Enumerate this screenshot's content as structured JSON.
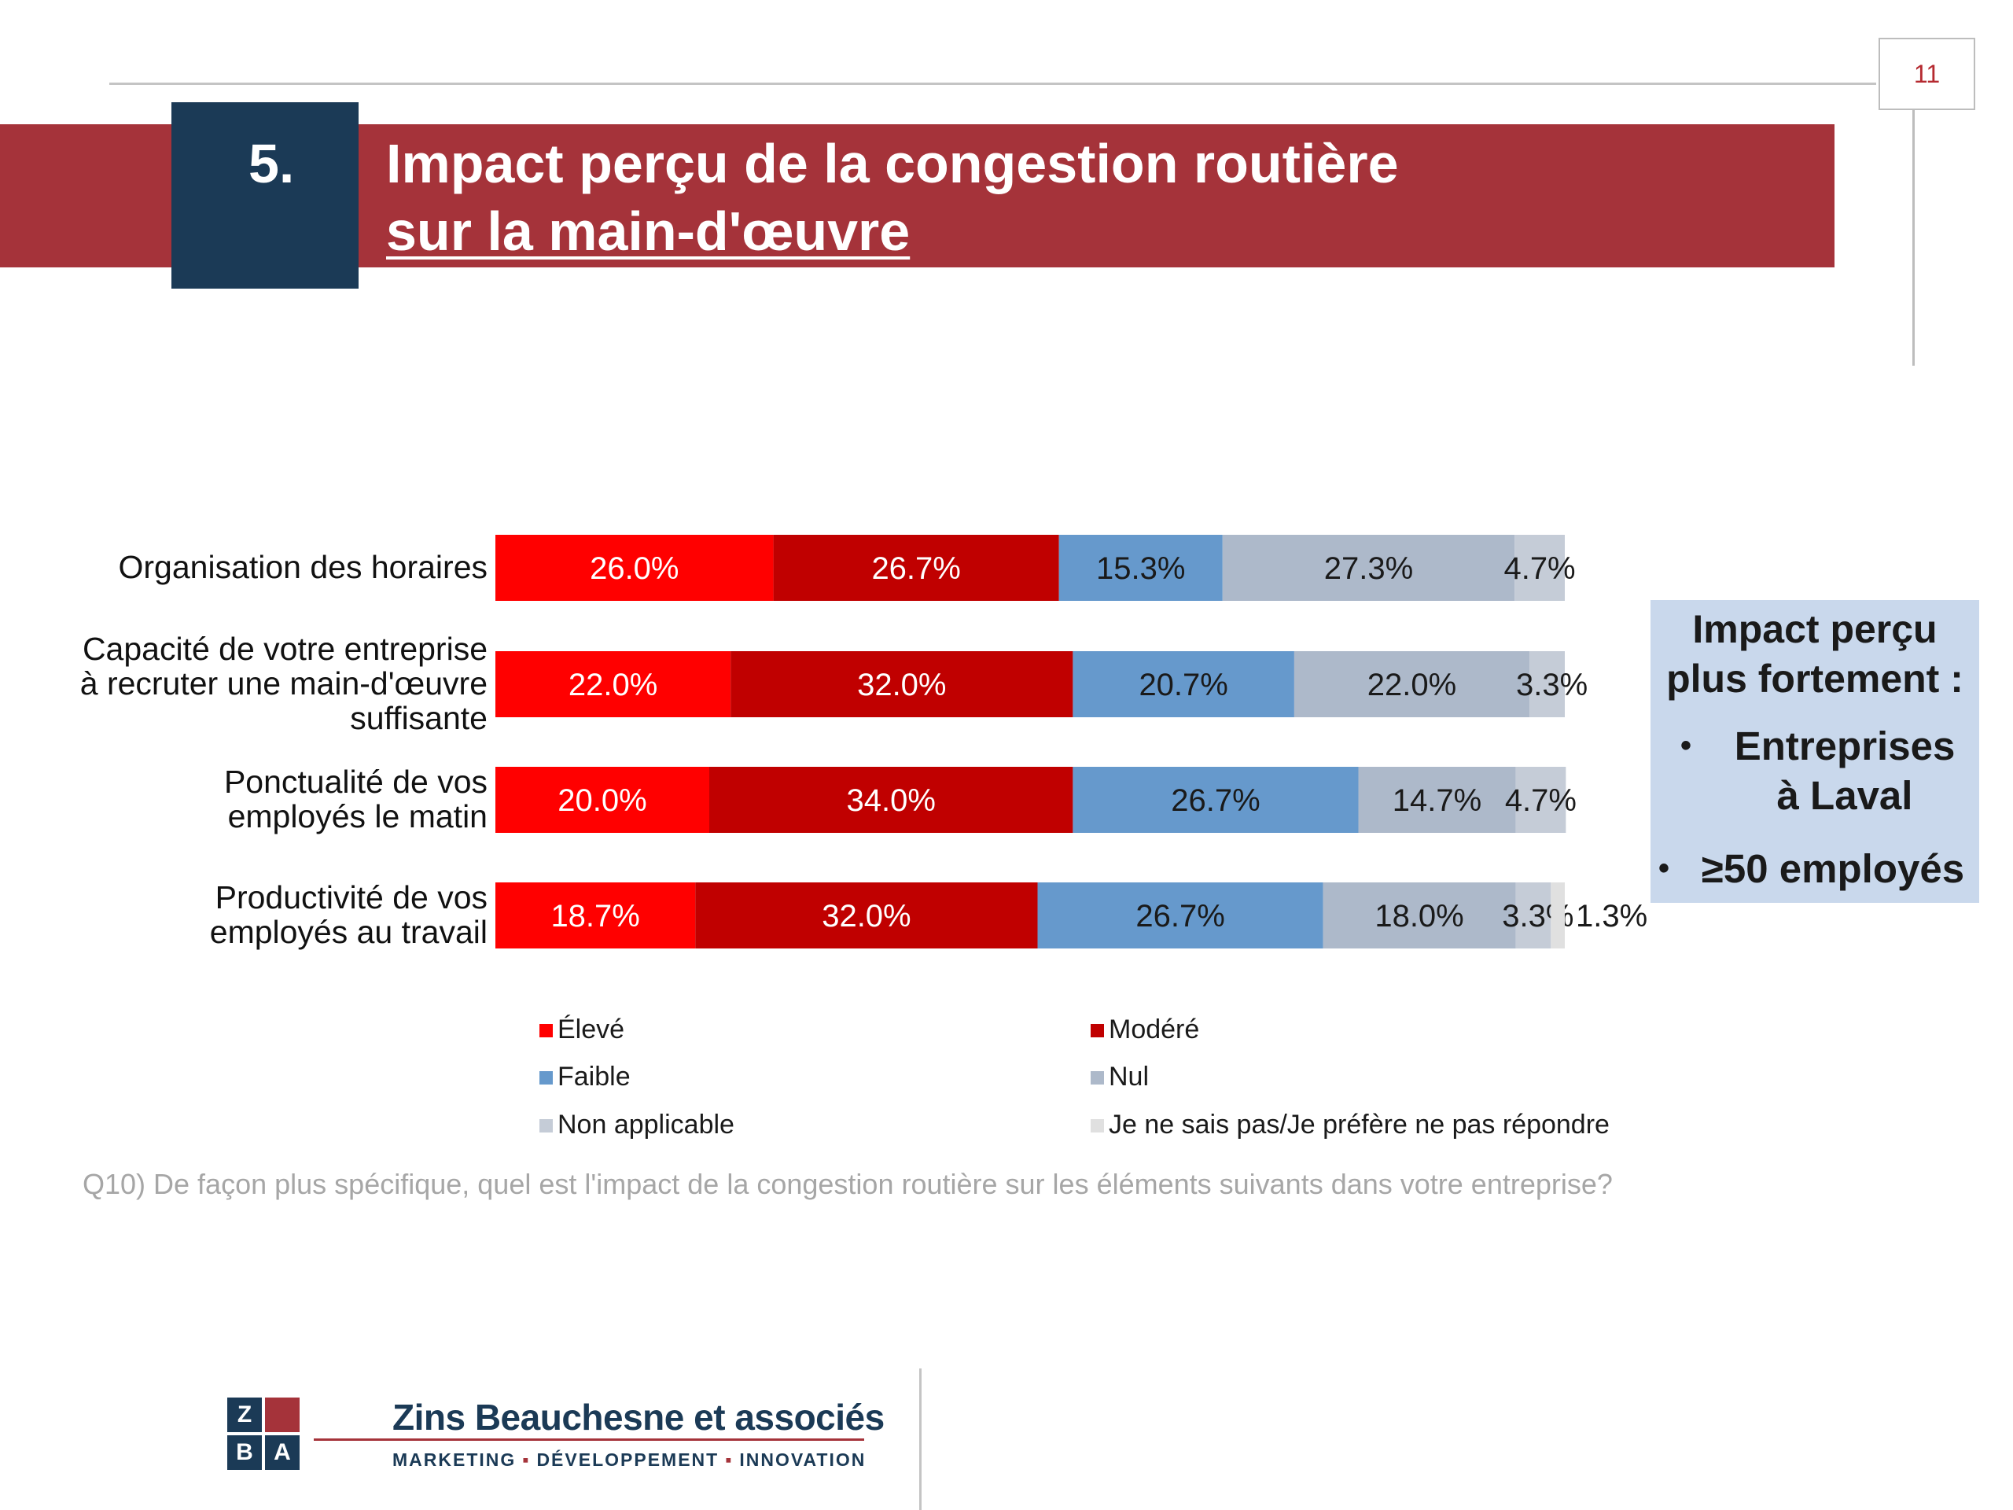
{
  "page_number": "11",
  "section_number": "5.",
  "title_line1": "Impact perçu de la congestion routière",
  "title_line2": "sur la main-d'œuvre",
  "chart_data": {
    "type": "bar",
    "orientation": "horizontal",
    "stacked": true,
    "categories": [
      [
        "Organisation des horaires"
      ],
      [
        "Capacité de votre entreprise",
        "à recruter une main-d'œuvre",
        "suffisante"
      ],
      [
        "Ponctualité de vos",
        "employés le matin"
      ],
      [
        "Productivité de vos",
        "employés au travail"
      ]
    ],
    "series": [
      {
        "name": "Élevé",
        "color": "#ff0000",
        "values": [
          26.0,
          22.0,
          20.0,
          18.7
        ],
        "labels": [
          "26.0%",
          "22.0%",
          "20.0%",
          "18.7%"
        ]
      },
      {
        "name": "Modéré",
        "color": "#c00000",
        "values": [
          26.7,
          32.0,
          34.0,
          32.0
        ],
        "labels": [
          "26.7%",
          "32.0%",
          "34.0%",
          "32.0%"
        ]
      },
      {
        "name": "Faible",
        "color": "#6699cc",
        "values": [
          15.3,
          20.7,
          26.7,
          26.7
        ],
        "labels": [
          "15.3%",
          "20.7%",
          "26.7%",
          "26.7%"
        ]
      },
      {
        "name": "Nul",
        "color": "#adb9ca",
        "values": [
          27.3,
          22.0,
          14.7,
          18.0
        ],
        "labels": [
          "27.3%",
          "22.0%",
          "14.7%",
          "18.0%"
        ]
      },
      {
        "name": "Non applicable",
        "color": "#c5ccd7",
        "values": [
          4.7,
          3.3,
          4.7,
          3.3
        ],
        "labels": [
          "4.7%",
          "3.3%",
          "4.7%",
          "3.3%"
        ]
      },
      {
        "name": "Je ne sais pas/Je préfère ne pas répondre",
        "color": "#e0e0e0",
        "values": [
          0,
          0,
          0,
          1.3
        ],
        "labels": [
          "",
          "",
          "",
          "1.3%"
        ]
      }
    ],
    "xlim": [
      0,
      100
    ],
    "legend_position": "bottom",
    "grid": false
  },
  "question": "Q10) De façon plus spécifique, quel est l'impact de la congestion routière sur les éléments suivants dans votre entreprise?",
  "callout": {
    "title_line1": "Impact perçu",
    "title_line2": "plus fortement :",
    "item1_line1": "Entreprises",
    "item1_line2": "à Laval",
    "item2": "≥50 employés",
    "bullet": "•"
  },
  "logo": {
    "letters": [
      "Z",
      "B",
      "A"
    ],
    "name": "Zins Beauchesne et associés",
    "tag1": "MARKETING",
    "tag2": "DÉVELOPPEMENT",
    "tag3": "INNOVATION",
    "tag_separator": "▪"
  }
}
